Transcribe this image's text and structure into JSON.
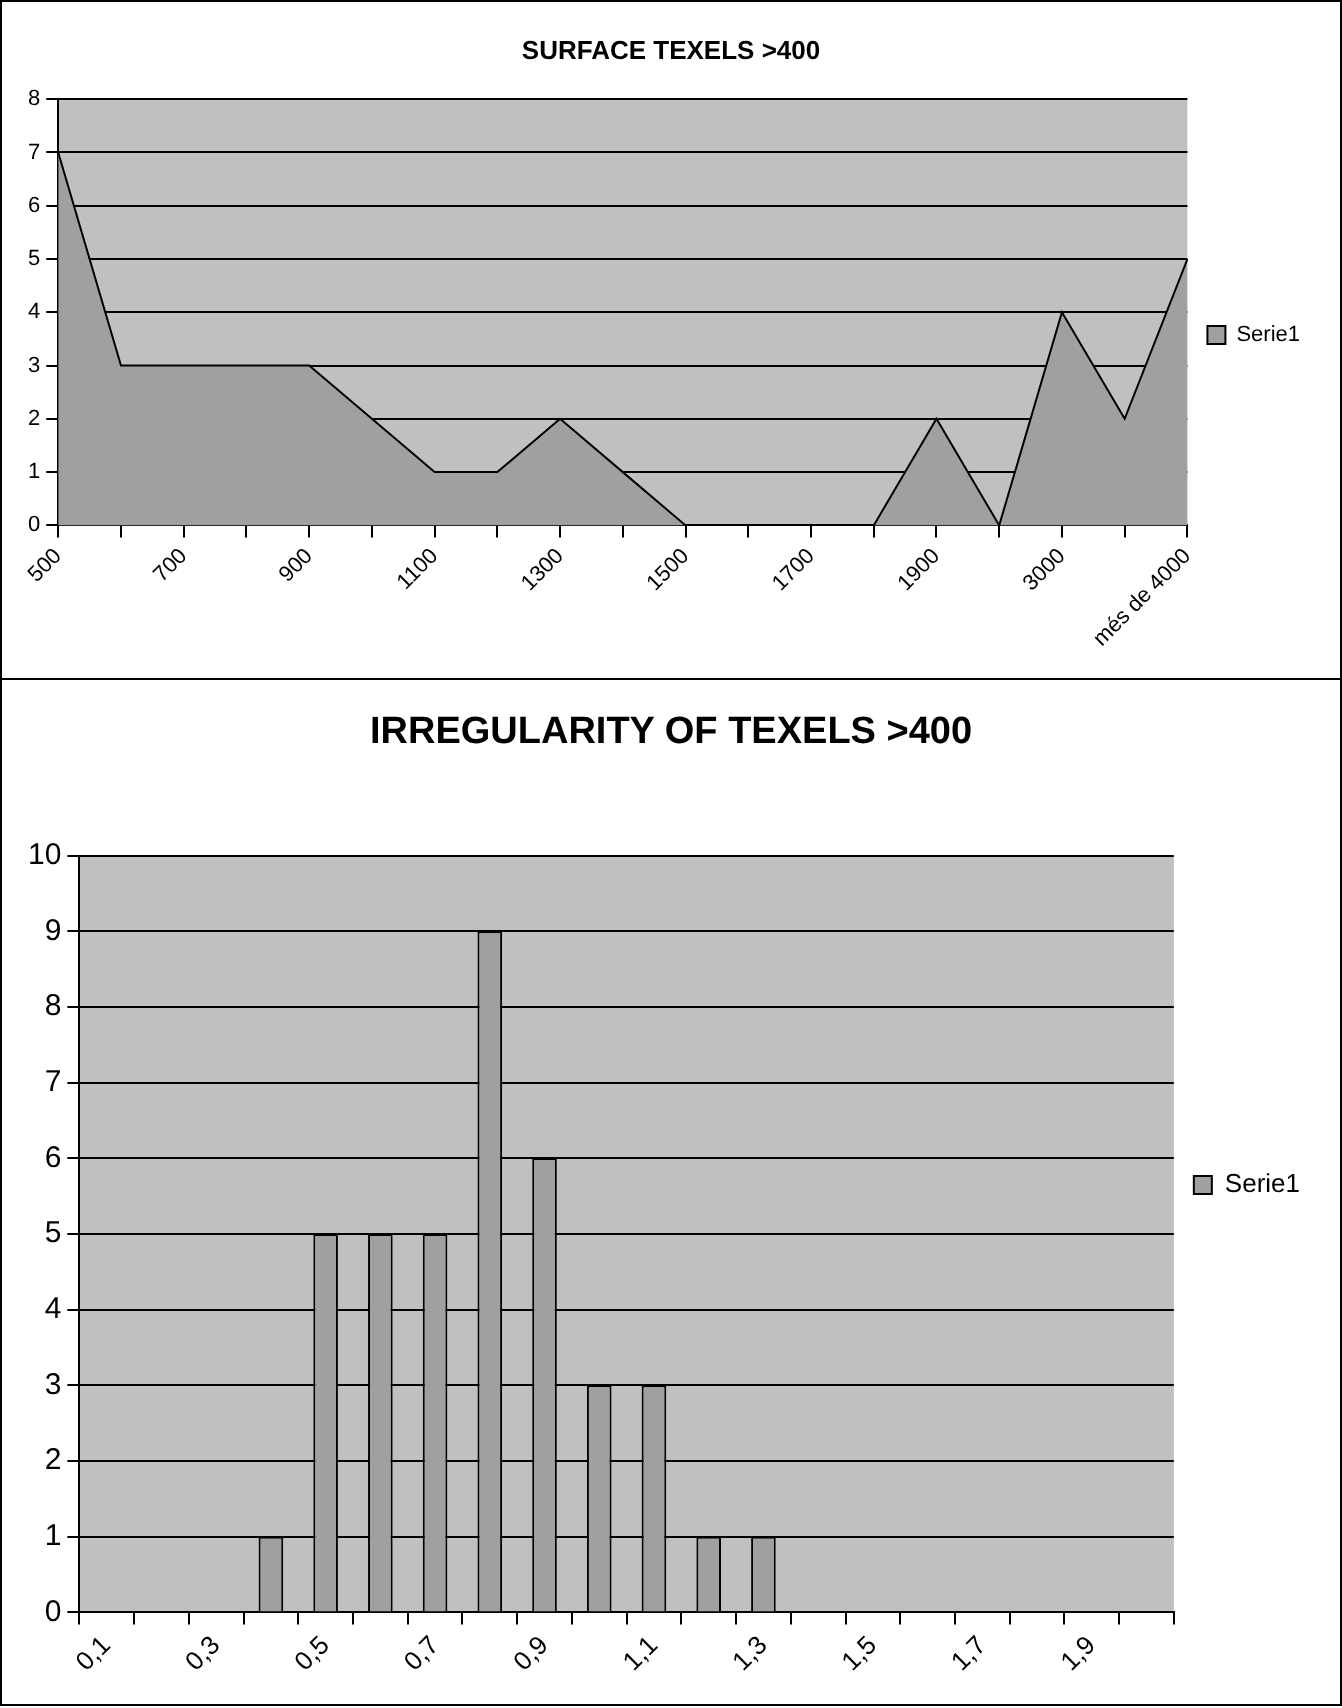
{
  "chart_data": [
    {
      "type": "area",
      "title": "SURFACE TEXELS >400",
      "categories": [
        "500",
        null,
        "700",
        null,
        "900",
        null,
        "1100",
        null,
        "1300",
        null,
        "1500",
        null,
        "1700",
        null,
        "1900",
        null,
        "3000",
        null,
        "més de 4000"
      ],
      "series": [
        {
          "name": "Serie1",
          "color": "#a0a0a0",
          "values": [
            7,
            3,
            3,
            3,
            3,
            2,
            1,
            1,
            2,
            1,
            0,
            0,
            0,
            0,
            2,
            0,
            4,
            2,
            5
          ]
        }
      ],
      "ylim": [
        0,
        8
      ],
      "yticks": [
        0,
        1,
        2,
        3,
        4,
        5,
        6,
        7,
        8
      ],
      "grid": "y",
      "legend": "right"
    },
    {
      "type": "bar",
      "title": "IRREGULARITY OF TEXELS >400",
      "categories": [
        "0,1",
        null,
        "0,3",
        null,
        "0,5",
        null,
        "0,7",
        null,
        "0,9",
        null,
        "1,1",
        null,
        "1,3",
        null,
        "1,5",
        null,
        "1,7",
        null,
        "1,9",
        null
      ],
      "series": [
        {
          "name": "Serie1",
          "color": "#a0a0a0",
          "values": [
            0,
            0,
            0,
            1,
            5,
            5,
            5,
            9,
            6,
            3,
            3,
            1,
            1,
            0,
            0,
            0,
            0,
            0,
            0,
            0
          ]
        }
      ],
      "ylim": [
        0,
        10
      ],
      "yticks": [
        0,
        1,
        2,
        3,
        4,
        5,
        6,
        7,
        8,
        9,
        10
      ],
      "grid": "y",
      "legend": "right"
    }
  ]
}
